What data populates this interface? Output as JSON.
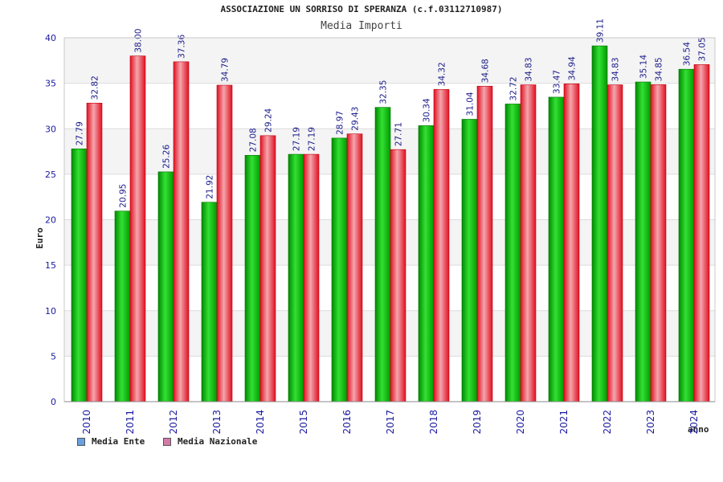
{
  "chart_data": {
    "type": "bar",
    "title": "ASSOCIAZIONE UN SORRISO DI SPERANZA (c.f.03112710987)",
    "subtitle": "Media Importi",
    "xlabel": "anno",
    "ylabel": "Euro",
    "ylim": [
      0,
      40
    ],
    "yticks": [
      "0",
      "5",
      "10",
      "15",
      "20",
      "25",
      "30",
      "35",
      "40"
    ],
    "categories": [
      "2010",
      "2011",
      "2012",
      "2013",
      "2014",
      "2015",
      "2016",
      "2017",
      "2018",
      "2019",
      "2020",
      "2021",
      "2022",
      "2023",
      "2024"
    ],
    "series": [
      {
        "name": "Media Ente",
        "color": "#00b300",
        "legend_color": "#6aa0e0",
        "values": [
          27.79,
          20.95,
          25.26,
          21.92,
          27.08,
          27.19,
          28.97,
          32.35,
          30.34,
          31.04,
          32.72,
          33.47,
          39.11,
          35.14,
          36.54
        ],
        "labels": [
          "27.79",
          "20.95",
          "25.26",
          "21.92",
          "27.08",
          "27.19",
          "28.97",
          "32.35",
          "30.34",
          "31.04",
          "32.72",
          "33.47",
          "39.11",
          "35.14",
          "36.54"
        ]
      },
      {
        "name": "Media Nazionale",
        "color": "#e8202a",
        "legend_color": "#d57aa8",
        "values": [
          32.82,
          38.0,
          37.36,
          34.79,
          29.24,
          27.19,
          29.43,
          27.71,
          34.32,
          34.68,
          34.83,
          34.94,
          34.83,
          34.85,
          37.05
        ],
        "labels": [
          "32.82",
          "38.00",
          "37.36",
          "34.79",
          "29.24",
          "27.19",
          "29.43",
          "27.71",
          "34.32",
          "34.68",
          "34.83",
          "34.94",
          "34.83",
          "34.85",
          "37.05"
        ]
      }
    ],
    "grid": true,
    "legend_position": "bottom-left"
  }
}
